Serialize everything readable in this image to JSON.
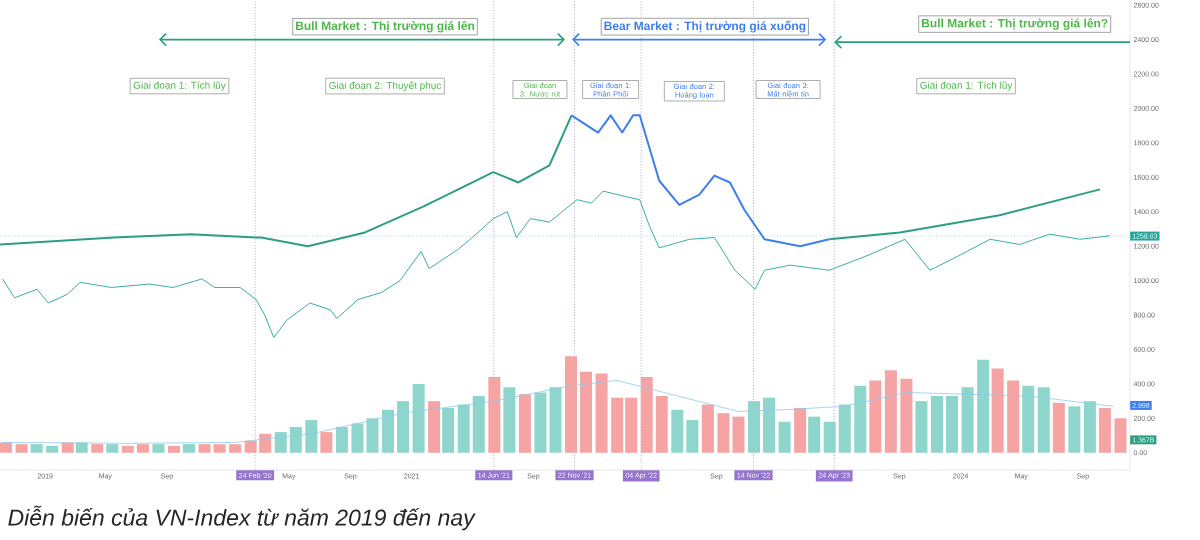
{
  "chart_data": {
    "type": "line",
    "xlim": [
      "2018-10-03",
      "2024-12-04"
    ],
    "ylim": [
      -100,
      2630
    ],
    "xticks": [
      {
        "value": "2019-01-01",
        "label": "2019"
      },
      {
        "value": "2019-05-01",
        "label": "May"
      },
      {
        "value": "2019-09-01",
        "label": "Sep"
      },
      {
        "value": "2020-05-01",
        "label": "May"
      },
      {
        "value": "2020-09-01",
        "label": "Sep"
      },
      {
        "value": "2021-01-01",
        "label": "2021"
      },
      {
        "value": "2021-09-01",
        "label": "Sep"
      },
      {
        "value": "2022-09-01",
        "label": "Sep"
      },
      {
        "value": "2023-09-01",
        "label": "Sep"
      },
      {
        "value": "2024-01-01",
        "label": "2024"
      },
      {
        "value": "2024-05-01",
        "label": "May"
      },
      {
        "value": "2024-09-01",
        "label": "Sep"
      }
    ],
    "yticks": [
      {
        "value": 0,
        "label": "0.00"
      },
      {
        "value": 200,
        "label": "200.00"
      },
      {
        "value": 400,
        "label": "400.00"
      },
      {
        "value": 600,
        "label": "600.00"
      },
      {
        "value": 800,
        "label": "800.00"
      },
      {
        "value": 1000,
        "label": "1000.00"
      },
      {
        "value": 1200,
        "label": "1200.00"
      },
      {
        "value": 1400,
        "label": "1400.00"
      },
      {
        "value": 1600,
        "label": "1600.00"
      },
      {
        "value": 1800,
        "label": "1800.00"
      },
      {
        "value": 2000,
        "label": "2000.00"
      },
      {
        "value": 2200,
        "label": "2200.00"
      },
      {
        "value": 2400,
        "label": "2400.00"
      },
      {
        "value": 2600,
        "label": "2600.00"
      }
    ],
    "series": [
      {
        "type": "bar",
        "x": [
          "2018-10-15",
          "2018-11-15",
          "2018-12-15",
          "2019-01-15",
          "2019-02-15",
          "2019-03-15",
          "2019-04-15",
          "2019-05-15",
          "2019-06-15",
          "2019-07-15",
          "2019-08-15",
          "2019-09-15",
          "2019-10-15",
          "2019-11-15",
          "2019-12-15",
          "2020-01-15",
          "2020-02-15",
          "2020-03-15",
          "2020-04-15",
          "2020-05-15",
          "2020-06-15",
          "2020-07-15",
          "2020-08-15",
          "2020-09-15",
          "2020-10-15",
          "2020-11-15",
          "2020-12-15",
          "2021-01-15",
          "2021-02-15",
          "2021-03-15",
          "2021-04-15",
          "2021-05-15",
          "2021-06-15",
          "2021-07-15",
          "2021-08-15",
          "2021-09-15",
          "2021-10-15",
          "2021-11-15",
          "2021-12-15",
          "2022-01-15",
          "2022-02-15",
          "2022-03-15",
          "2022-04-15",
          "2022-05-15",
          "2022-06-15",
          "2022-07-15",
          "2022-08-15",
          "2022-09-15",
          "2022-10-15",
          "2022-11-15",
          "2022-12-15",
          "2023-01-15",
          "2023-02-15",
          "2023-03-15",
          "2023-04-15",
          "2023-05-15",
          "2023-06-15",
          "2023-07-15",
          "2023-08-15",
          "2023-09-15",
          "2023-10-15",
          "2023-11-15",
          "2023-12-15",
          "2024-01-15",
          "2024-02-15",
          "2024-03-15",
          "2024-04-15",
          "2024-05-15",
          "2024-06-15",
          "2024-07-15",
          "2024-08-15",
          "2024-09-15",
          "2024-10-15",
          "2024-11-15"
        ],
        "values": [
          60,
          50,
          50,
          40,
          60,
          60,
          50,
          50,
          40,
          50,
          50,
          40,
          50,
          50,
          50,
          50,
          70,
          110,
          120,
          150,
          190,
          120,
          150,
          170,
          200,
          250,
          300,
          400,
          300,
          260,
          280,
          330,
          440,
          380,
          340,
          350,
          380,
          560,
          470,
          460,
          320,
          320,
          440,
          330,
          250,
          190,
          280,
          230,
          210,
          300,
          320,
          180,
          260,
          210,
          180,
          280,
          390,
          420,
          480,
          430,
          300,
          330,
          330,
          380,
          540,
          490,
          420,
          390,
          380,
          290,
          270,
          300,
          260,
          200
        ],
        "colors": [
          "#f5a3a3",
          "#f5a3a3",
          "#8ed6cc",
          "#8ed6cc",
          "#f5a3a3",
          "#8ed6cc",
          "#f5a3a3",
          "#8ed6cc",
          "#f5a3a3",
          "#f5a3a3",
          "#8ed6cc",
          "#f5a3a3",
          "#8ed6cc",
          "#f5a3a3",
          "#f5a3a3",
          "#f5a3a3",
          "#f5a3a3",
          "#f5a3a3",
          "#8ed6cc",
          "#8ed6cc",
          "#8ed6cc",
          "#f5a3a3",
          "#8ed6cc",
          "#8ed6cc",
          "#8ed6cc",
          "#8ed6cc",
          "#8ed6cc",
          "#8ed6cc",
          "#f5a3a3",
          "#8ed6cc",
          "#8ed6cc",
          "#8ed6cc",
          "#f5a3a3",
          "#8ed6cc",
          "#f5a3a3",
          "#8ed6cc",
          "#8ed6cc",
          "#f5a3a3",
          "#f5a3a3",
          "#f5a3a3",
          "#f5a3a3",
          "#f5a3a3",
          "#f5a3a3",
          "#f5a3a3",
          "#8ed6cc",
          "#8ed6cc",
          "#f5a3a3",
          "#f5a3a3",
          "#f5a3a3",
          "#8ed6cc",
          "#8ed6cc",
          "#8ed6cc",
          "#f5a3a3",
          "#8ed6cc",
          "#8ed6cc",
          "#8ed6cc",
          "#8ed6cc",
          "#f5a3a3",
          "#f5a3a3",
          "#f5a3a3",
          "#8ed6cc",
          "#8ed6cc",
          "#8ed6cc",
          "#8ed6cc",
          "#8ed6cc",
          "#f5a3a3",
          "#f5a3a3",
          "#8ed6cc",
          "#8ed6cc",
          "#f5a3a3",
          "#8ed6cc",
          "#8ed6cc",
          "#f5a3a3",
          "#f5a3a3"
        ]
      },
      {
        "color": "#8ec9f0",
        "x": [
          "2018-10-08",
          "2019-06-15",
          "2020-01-15",
          "2020-06-15",
          "2020-12-15",
          "2021-06-15",
          "2021-11-15",
          "2022-02-15",
          "2022-06-15",
          "2022-10-15",
          "2023-01-15",
          "2023-05-15",
          "2023-09-15",
          "2024-01-15",
          "2024-05-15",
          "2024-11-01"
        ],
        "values": [
          60,
          55,
          60,
          110,
          230,
          300,
          390,
          420,
          330,
          240,
          250,
          270,
          350,
          340,
          330,
          270
        ]
      },
      {
        "color": "#26a69a",
        "x": [
          "2018-10-08",
          "2018-11-01",
          "2018-12-16",
          "2019-01-07",
          "2019-02-14",
          "2019-03-12",
          "2019-05-13",
          "2019-07-28",
          "2019-09-13",
          "2019-11-10",
          "2019-12-05",
          "2020-01-25",
          "2020-02-26",
          "2020-03-14",
          "2020-04-01",
          "2020-04-27",
          "2020-06-12",
          "2020-07-23",
          "2020-08-05",
          "2020-09-16",
          "2020-11-01",
          "2020-12-09",
          "2021-01-20",
          "2021-02-05",
          "2021-04-03",
          "2021-05-02",
          "2021-06-13",
          "2021-07-11",
          "2021-07-29",
          "2021-08-26",
          "2021-10-03",
          "2021-11-27",
          "2021-12-26",
          "2022-01-18",
          "2022-03-01",
          "2022-04-01",
          "2022-04-20",
          "2022-05-10",
          "2022-07-09",
          "2022-08-28",
          "2022-10-08",
          "2022-11-17",
          "2022-12-06",
          "2023-01-26",
          "2023-04-14",
          "2023-07-03",
          "2023-09-12",
          "2023-11-01",
          "2024-01-01",
          "2024-02-29",
          "2024-04-28",
          "2024-06-27",
          "2024-08-26",
          "2024-10-25"
        ],
        "values": [
          1010,
          900,
          950,
          870,
          920,
          990,
          960,
          980,
          960,
          1010,
          960,
          960,
          890,
          800,
          670,
          770,
          870,
          830,
          780,
          890,
          930,
          1000,
          1170,
          1070,
          1180,
          1250,
          1360,
          1400,
          1250,
          1360,
          1340,
          1470,
          1450,
          1520,
          1490,
          1470,
          1320,
          1190,
          1240,
          1250,
          1060,
          950,
          1060,
          1090,
          1060,
          1150,
          1240,
          1060,
          1150,
          1240,
          1210,
          1270,
          1240,
          1260
        ]
      },
      {
        "color": "#2e9e82",
        "x": [
          "2018-10-03",
          "2019-05-18",
          "2019-10-19",
          "2020-02-26",
          "2020-03-07",
          "2020-06-08",
          "2020-09-30",
          "2021-01-24",
          "2021-06-13",
          "2021-08-02",
          "2021-10-03",
          "2021-11-16"
        ],
        "values": [
          1210,
          1250,
          1270,
          1250,
          1250,
          1200,
          1280,
          1430,
          1630,
          1570,
          1670,
          1960
        ]
      },
      {
        "color": "#3d7ef0",
        "x": [
          "2021-11-16",
          "2022-01-08",
          "2022-02-02",
          "2022-02-25",
          "2022-03-19",
          "2022-04-01",
          "2022-05-10",
          "2022-06-19",
          "2022-07-29",
          "2022-08-28",
          "2022-09-28",
          "2022-10-27",
          "2022-12-06",
          "2023-02-15",
          "2023-04-14"
        ],
        "values": [
          1960,
          1860,
          1960,
          1860,
          1960,
          1960,
          1580,
          1440,
          1500,
          1610,
          1570,
          1410,
          1240,
          1200,
          1240
        ]
      },
      {
        "color": "#2e9e82",
        "x": [
          "2023-04-14",
          "2023-09-02",
          "2024-03-19",
          "2024-10-05"
        ],
        "values": [
          1240,
          1280,
          1380,
          1530
        ]
      }
    ],
    "ref_lines": [
      {
        "axis": "x",
        "value": "2020-02-24",
        "label": "24 Feb '20",
        "color": "#9575cd",
        "line_style": "dotted"
      },
      {
        "axis": "x",
        "value": "2021-06-14",
        "label": "14 Jun '21",
        "color": "#9575cd",
        "line_style": "dotted"
      },
      {
        "axis": "x",
        "value": "2021-11-22",
        "label": "22 Nov '21",
        "color": "#9575cd",
        "line_style": "dotted"
      },
      {
        "axis": "x",
        "value": "2022-04-04",
        "label": "04 Apr '22",
        "color": "#9575cd",
        "line_style": "dotted"
      },
      {
        "axis": "x",
        "value": "2022-11-14",
        "label": "14 Nov '22",
        "color": "#9575cd",
        "line_style": "dotted"
      },
      {
        "axis": "x",
        "value": "2023-04-24",
        "label": "24 Apr '23",
        "color": "#9575cd",
        "line_style": "dotted"
      },
      {
        "axis": "y",
        "value": 1258.63,
        "label": "1258.63",
        "color": "#26a69a",
        "line_style": "dotted"
      }
    ],
    "annotations": [
      "Bull Market : Thị trường giá lên",
      "Bear Market : Thị trường giá xuống",
      "Bull Market : Thị trường giá lên?",
      "Giai đoạn 1: Tích lũy",
      "Giai đoạn 2: Thuyết phục",
      "Giai đoạn 3: Nước rút",
      "Giai đoạn 1: Phân Phối",
      "Giai đoạn 2: Hoảng loạn",
      "Giai đoạn 3: Mất niềm tin",
      "Giai đoạn 1: Tích lũy",
      "2.998",
      "1.367B",
      "Diễn biến của VN-Index từ năm 2019 đến nay"
    ]
  }
}
